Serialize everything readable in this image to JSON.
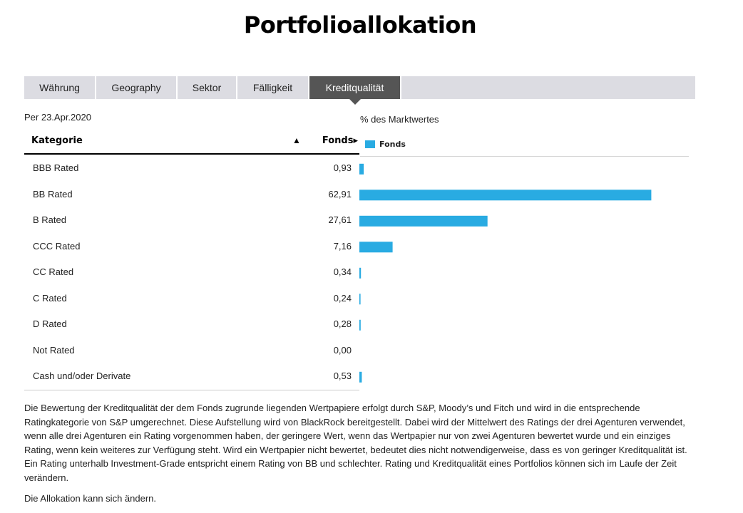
{
  "header": {
    "title": "Portfolioallokation"
  },
  "tabs": [
    {
      "label": "Währung",
      "active": false
    },
    {
      "label": "Geography",
      "active": false
    },
    {
      "label": "Sektor",
      "active": false
    },
    {
      "label": "Fälligkeit",
      "active": false
    },
    {
      "label": "Kreditqualität",
      "active": true
    }
  ],
  "table": {
    "as_of": "Per 23.Apr.2020",
    "col_category": "Kategorie",
    "sort_indicator": "▲",
    "col_value": "Fonds▸",
    "rows": [
      {
        "category": "BBB Rated",
        "value": "0,93"
      },
      {
        "category": "BB Rated",
        "value": "62,91"
      },
      {
        "category": "B Rated",
        "value": "27,61"
      },
      {
        "category": "CCC Rated",
        "value": "7,16"
      },
      {
        "category": "CC Rated",
        "value": "0,34"
      },
      {
        "category": "C Rated",
        "value": "0,24"
      },
      {
        "category": "D Rated",
        "value": "0,28"
      },
      {
        "category": "Not Rated",
        "value": "0,00"
      },
      {
        "category": "Cash und/oder Derivate",
        "value": "0,53"
      }
    ]
  },
  "chart_data": {
    "type": "bar",
    "orientation": "horizontal",
    "title": "% des Marktwertes",
    "categories": [
      "BBB Rated",
      "BB Rated",
      "B Rated",
      "CCC Rated",
      "CC Rated",
      "C Rated",
      "D Rated",
      "Not Rated",
      "Cash und/oder Derivate"
    ],
    "series": [
      {
        "name": "Fonds",
        "values": [
          0.93,
          62.91,
          27.61,
          7.16,
          0.34,
          0.24,
          0.28,
          0.0,
          0.53
        ]
      }
    ],
    "xlim": [
      0,
      71
    ],
    "legend": "top-left",
    "color": "#29abe2"
  },
  "notes": {
    "disclaimer": "Die Bewertung der Kreditqualität der dem Fonds zugrunde liegenden Wertpapiere erfolgt durch S&P, Moody’s und Fitch und wird in die entsprechende Ratingkategorie von S&P umgerechnet. Diese Aufstellung wird von BlackRock bereitgestellt. Dabei wird der Mittelwert des Ratings der drei Agenturen verwendet, wenn alle drei Agenturen ein Rating vorgenommen haben, der geringere Wert, wenn das Wertpapier nur von zwei Agenturen bewertet wurde und ein einziges Rating, wenn kein weiteres zur Verfügung steht. Wird ein Wertpapier nicht bewertet, bedeutet dies nicht notwendigerweise, dass es von geringer Kreditqualität ist. Ein Rating unterhalb Investment-Grade entspricht einem Rating von BB und schlechter. Rating und Kreditqualität eines Portfolios können sich im Laufe der Zeit verändern.",
    "allocation_note": "Die Allokation kann sich ändern."
  }
}
